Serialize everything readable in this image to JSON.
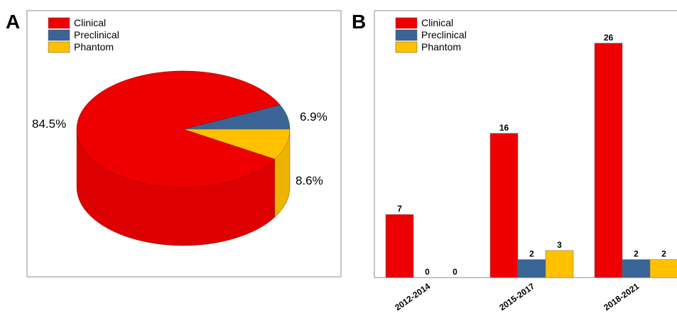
{
  "panels": {
    "a_letter": "A",
    "b_letter": "B"
  },
  "legend": [
    {
      "name": "Clinical",
      "color": "#ee0000"
    },
    {
      "name": "Preclinical",
      "color": "#3a6496"
    },
    {
      "name": "Phantom",
      "color": "#ffc000"
    }
  ],
  "chart_data": [
    {
      "type": "pie",
      "title": "",
      "style": "3d",
      "labels": [
        "Clinical",
        "Preclinical",
        "Phantom"
      ],
      "values": [
        84.5,
        6.9,
        8.6
      ],
      "value_labels": [
        "84.5%",
        "6.9%",
        "8.6%"
      ],
      "colors": [
        "#ee0000",
        "#3a6496",
        "#ffc000"
      ],
      "legend_position": "top-left"
    },
    {
      "type": "bar",
      "title": "",
      "categories": [
        "2012-2014",
        "2015-2017",
        "2018-2021"
      ],
      "series": [
        {
          "name": "Clinical",
          "values": [
            7,
            16,
            26
          ],
          "color": "#ee0000"
        },
        {
          "name": "Preclinical",
          "values": [
            0,
            2,
            2
          ],
          "color": "#3a6496"
        },
        {
          "name": "Phantom",
          "values": [
            0,
            3,
            2
          ],
          "color": "#ffc000"
        }
      ],
      "xlabel": "",
      "ylabel": "",
      "ylim": [
        0,
        28
      ],
      "grid": false,
      "legend_position": "top-left"
    }
  ]
}
